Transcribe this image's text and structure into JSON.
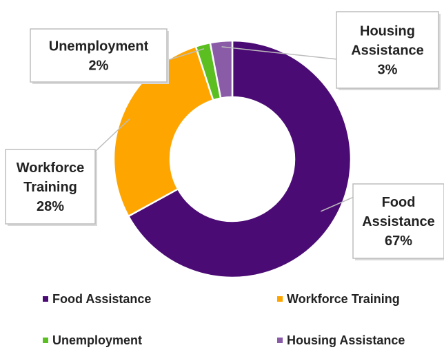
{
  "chart_data": {
    "type": "pie",
    "donut": true,
    "slices": [
      {
        "label": "Food Assistance",
        "value": 67,
        "percent_label": "67%",
        "color": "#4b0b74"
      },
      {
        "label": "Workforce Training",
        "value": 28,
        "percent_label": "28%",
        "color": "#ffa500"
      },
      {
        "label": "Unemployment",
        "value": 2,
        "percent_label": "2%",
        "color": "#5bbf21"
      },
      {
        "label": "Housing Assistance",
        "value": 3,
        "percent_label": "3%",
        "color": "#8a5ca8"
      }
    ],
    "callouts": [
      {
        "slice": "Food Assistance",
        "lines": [
          "Food",
          "Assistance",
          "67%"
        ]
      },
      {
        "slice": "Workforce Training",
        "lines": [
          "Workforce",
          "Training",
          "28%"
        ]
      },
      {
        "slice": "Unemployment",
        "lines": [
          "Unemployment",
          "2%"
        ]
      },
      {
        "slice": "Housing Assistance",
        "lines": [
          "Housing",
          "Assistance",
          "3%"
        ]
      }
    ],
    "legend": {
      "placement": "bottom",
      "items": [
        "Food Assistance",
        "Workforce Training",
        "Unemployment",
        "Housing Assistance"
      ]
    },
    "title": ""
  }
}
